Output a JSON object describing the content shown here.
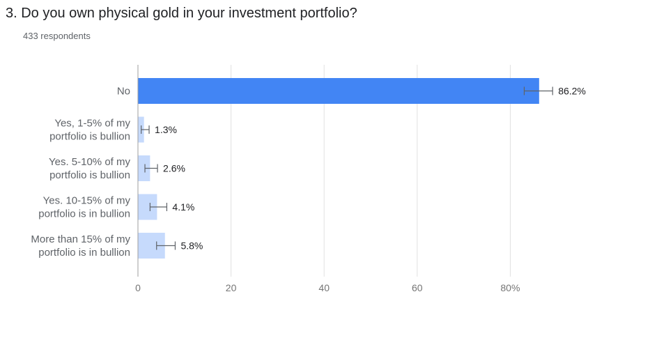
{
  "header": {
    "title": "3.  Do you own physical gold in your investment portfolio?",
    "respondents": "433 respondents"
  },
  "colors": {
    "highlight_bar": "#4285f4",
    "other_bar": "#c6dafc",
    "gridline": "#e0e0e0",
    "axis": "#9e9e9e",
    "error_bar": "#5f6368"
  },
  "chart_data": {
    "type": "bar",
    "orientation": "horizontal",
    "categories": [
      [
        "No"
      ],
      [
        "Yes, 1-5% of my",
        "portfolio is bullion"
      ],
      [
        "Yes. 5-10% of my",
        "portfolio is bullion"
      ],
      [
        "Yes. 10-15% of my",
        "portfolio is in bullion"
      ],
      [
        "More than 15% of my",
        "portfolio is in bullion"
      ]
    ],
    "values": [
      86.2,
      1.3,
      2.6,
      4.1,
      5.8
    ],
    "value_labels": [
      "86.2%",
      "1.3%",
      "2.6%",
      "4.1%",
      "5.8%"
    ],
    "error_bars": [
      [
        83.0,
        89.1
      ],
      [
        0.7,
        2.4
      ],
      [
        1.5,
        4.2
      ],
      [
        2.6,
        6.2
      ],
      [
        4.0,
        8.0
      ]
    ],
    "xlim": [
      0,
      90
    ],
    "xticks": [
      0,
      20,
      40,
      60,
      80
    ],
    "xtick_labels": [
      "0",
      "20",
      "40",
      "60",
      "80%"
    ],
    "grid": true,
    "legend": "none"
  }
}
